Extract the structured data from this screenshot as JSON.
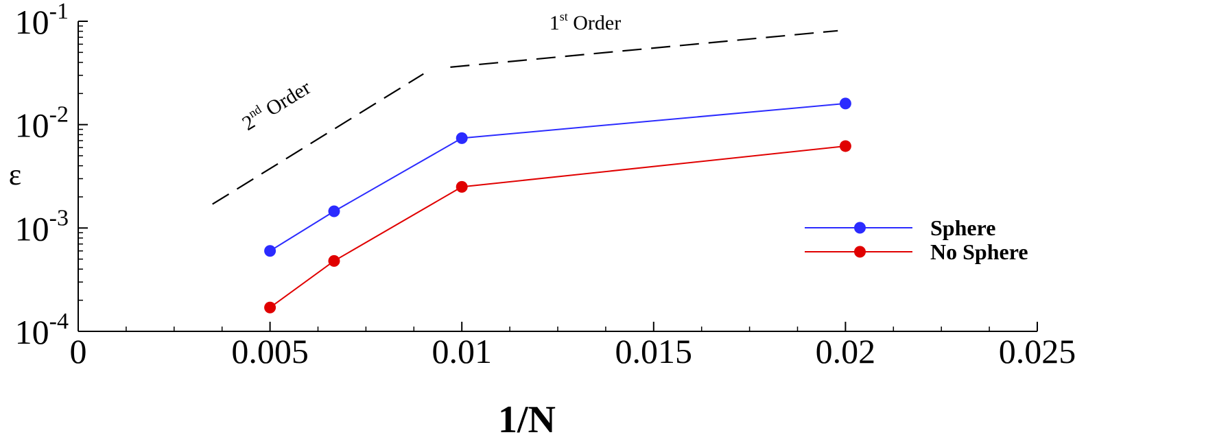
{
  "chart_data": {
    "type": "line",
    "xlabel": "1/N",
    "ylabel": "ε",
    "xlim": [
      0,
      0.025
    ],
    "ylim": [
      0.0001,
      0.1
    ],
    "yscale": "log",
    "grid": false,
    "legend_position": "right",
    "x_ticks": [
      0,
      0.005,
      0.01,
      0.015,
      0.02,
      0.025
    ],
    "x_tick_labels": [
      "0",
      "0.005",
      "0.01",
      "0.015",
      "0.02",
      "0.025"
    ],
    "y_ticks": [
      0.0001,
      0.001,
      0.01,
      0.1
    ],
    "y_tick_labels": [
      {
        "base": "10",
        "exp": "-4"
      },
      {
        "base": "10",
        "exp": "-3"
      },
      {
        "base": "10",
        "exp": "-2"
      },
      {
        "base": "10",
        "exp": "-1"
      }
    ],
    "series": [
      {
        "name": "Sphere",
        "color": "#2b2bff",
        "marker": "circle",
        "x": [
          0.005,
          0.00667,
          0.01,
          0.02
        ],
        "y": [
          0.0006,
          0.00145,
          0.0074,
          0.016
        ]
      },
      {
        "name": "No Sphere",
        "color": "#e00000",
        "marker": "circle",
        "x": [
          0.005,
          0.00667,
          0.01,
          0.02
        ],
        "y": [
          0.00017,
          0.00048,
          0.0025,
          0.0062
        ]
      }
    ],
    "reference_lines": [
      {
        "label_base": "2",
        "label_sup": "nd",
        "label_rest": " Order",
        "style": "dashed",
        "color": "#000000",
        "x": [
          0.0035,
          0.009
        ],
        "y": [
          0.0017,
          0.031
        ]
      },
      {
        "label_base": "1",
        "label_sup": "st",
        "label_rest": " Order",
        "style": "dashed",
        "color": "#000000",
        "x": [
          0.0097,
          0.0198
        ],
        "y": [
          0.036,
          0.081
        ]
      }
    ]
  }
}
